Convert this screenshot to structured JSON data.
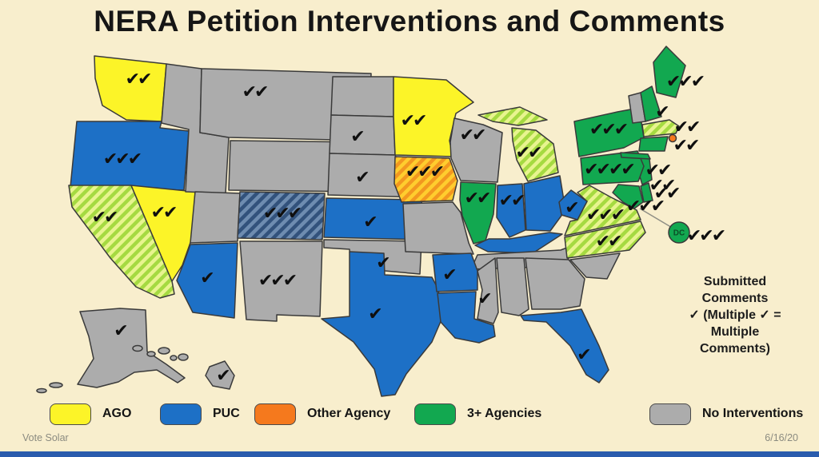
{
  "title": "NERA Petition Interventions and Comments",
  "annotation": "Submitted\nComments\n✓ (Multiple ✓ =\nMultiple\nComments)",
  "legend": {
    "items": [
      {
        "label": "AGO",
        "color": "#FCF428"
      },
      {
        "label": "PUC",
        "color": "#1D70C6"
      },
      {
        "label": "Other Agency",
        "color": "#F5791D"
      },
      {
        "label": "3+ Agencies",
        "color": "#12A850"
      },
      {
        "label": "No Interventions",
        "color": "#ACACAC"
      }
    ]
  },
  "footer": {
    "source": "Vote Solar",
    "date": "6/16/20"
  },
  "map_data": {
    "type": "choropleth",
    "region": "United States",
    "check_glyph": "✔",
    "dc_label": "DC",
    "checkmark_meaning": "Submitted Comments (multiple ✓ = multiple comments)",
    "categories": [
      "AGO",
      "PUC",
      "Other Agency",
      "3+ Agencies",
      "No Interventions"
    ],
    "states": [
      {
        "id": "WA",
        "name": "Washington",
        "category": "AGO",
        "hatched": false,
        "checks": 2
      },
      {
        "id": "OR",
        "name": "Oregon",
        "category": "PUC",
        "hatched": false,
        "checks": 3
      },
      {
        "id": "CA",
        "name": "California",
        "category": "3+ Agencies",
        "hatched": true,
        "checks": 2
      },
      {
        "id": "NV",
        "name": "Nevada",
        "category": "AGO",
        "hatched": false,
        "checks": 2
      },
      {
        "id": "ID",
        "name": "Idaho",
        "category": "No Interventions",
        "hatched": false,
        "checks": 0
      },
      {
        "id": "MT",
        "name": "Montana",
        "category": "No Interventions",
        "hatched": false,
        "checks": 2
      },
      {
        "id": "WY",
        "name": "Wyoming",
        "category": "No Interventions",
        "hatched": false,
        "checks": 0
      },
      {
        "id": "UT",
        "name": "Utah",
        "category": "No Interventions",
        "hatched": false,
        "checks": 0
      },
      {
        "id": "AZ",
        "name": "Arizona",
        "category": "PUC",
        "hatched": false,
        "checks": 1
      },
      {
        "id": "CO",
        "name": "Colorado",
        "category": "PUC",
        "hatched": true,
        "checks": 3
      },
      {
        "id": "NM",
        "name": "New Mexico",
        "category": "No Interventions",
        "hatched": false,
        "checks": 3
      },
      {
        "id": "ND",
        "name": "North Dakota",
        "category": "No Interventions",
        "hatched": false,
        "checks": 0
      },
      {
        "id": "SD",
        "name": "South Dakota",
        "category": "No Interventions",
        "hatched": false,
        "checks": 1
      },
      {
        "id": "NE",
        "name": "Nebraska",
        "category": "No Interventions",
        "hatched": false,
        "checks": 1
      },
      {
        "id": "KS",
        "name": "Kansas",
        "category": "PUC",
        "hatched": false,
        "checks": 1
      },
      {
        "id": "OK",
        "name": "Oklahoma",
        "category": "No Interventions",
        "hatched": false,
        "checks": 1
      },
      {
        "id": "TX",
        "name": "Texas",
        "category": "PUC",
        "hatched": false,
        "checks": 1
      },
      {
        "id": "MN",
        "name": "Minnesota",
        "category": "AGO",
        "hatched": false,
        "checks": 2
      },
      {
        "id": "IA",
        "name": "Iowa",
        "category": "Other Agency",
        "hatched": true,
        "checks": 3
      },
      {
        "id": "MO",
        "name": "Missouri",
        "category": "No Interventions",
        "hatched": false,
        "checks": 0
      },
      {
        "id": "WI",
        "name": "Wisconsin",
        "category": "No Interventions",
        "hatched": false,
        "checks": 2
      },
      {
        "id": "IL",
        "name": "Illinois",
        "category": "3+ Agencies",
        "hatched": false,
        "checks": 2
      },
      {
        "id": "MI",
        "name": "Michigan",
        "category": "3+ Agencies",
        "hatched": true,
        "checks": 2
      },
      {
        "id": "IN",
        "name": "Indiana",
        "category": "PUC",
        "hatched": false,
        "checks": 2
      },
      {
        "id": "OH",
        "name": "Ohio",
        "category": "PUC",
        "hatched": false,
        "checks": 0
      },
      {
        "id": "KY",
        "name": "Kentucky",
        "category": "PUC",
        "hatched": false,
        "checks": 0
      },
      {
        "id": "TN",
        "name": "Tennessee",
        "category": "No Interventions",
        "hatched": false,
        "checks": 0
      },
      {
        "id": "AR",
        "name": "Arkansas",
        "category": "PUC",
        "hatched": false,
        "checks": 1
      },
      {
        "id": "LA",
        "name": "Louisiana",
        "category": "PUC",
        "hatched": false,
        "checks": 0
      },
      {
        "id": "MS",
        "name": "Mississippi",
        "category": "No Interventions",
        "hatched": false,
        "checks": 1
      },
      {
        "id": "AL",
        "name": "Alabama",
        "category": "No Interventions",
        "hatched": false,
        "checks": 0
      },
      {
        "id": "GA",
        "name": "Georgia",
        "category": "No Interventions",
        "hatched": false,
        "checks": 0
      },
      {
        "id": "SC",
        "name": "South Carolina",
        "category": "No Interventions",
        "hatched": false,
        "checks": 0
      },
      {
        "id": "FL",
        "name": "Florida",
        "category": "PUC",
        "hatched": false,
        "checks": 1
      },
      {
        "id": "NC",
        "name": "North Carolina",
        "category": "3+ Agencies",
        "hatched": true,
        "checks": 2
      },
      {
        "id": "VA",
        "name": "Virginia",
        "category": "3+ Agencies",
        "hatched": true,
        "checks": 3
      },
      {
        "id": "WV",
        "name": "West Virginia",
        "category": "PUC",
        "hatched": false,
        "checks": 1
      },
      {
        "id": "MD",
        "name": "Maryland",
        "category": "3+ Agencies",
        "hatched": false,
        "checks": 3
      },
      {
        "id": "DE",
        "name": "Delaware",
        "category": "3+ Agencies",
        "hatched": false,
        "checks": 2
      },
      {
        "id": "NJ",
        "name": "New Jersey",
        "category": "3+ Agencies",
        "hatched": false,
        "checks": 2
      },
      {
        "id": "PA",
        "name": "Pennsylvania",
        "category": "3+ Agencies",
        "hatched": false,
        "checks": 4
      },
      {
        "id": "NY",
        "name": "New York",
        "category": "3+ Agencies",
        "hatched": false,
        "checks": 3
      },
      {
        "id": "CT",
        "name": "Connecticut",
        "category": "3+ Agencies",
        "hatched": false,
        "checks": 2
      },
      {
        "id": "RI",
        "name": "Rhode Island",
        "category": "Other Agency",
        "hatched": false,
        "checks": 2
      },
      {
        "id": "MA",
        "name": "Massachusetts",
        "category": "3+ Agencies",
        "hatched": true,
        "checks": 2
      },
      {
        "id": "VT",
        "name": "Vermont",
        "category": "No Interventions",
        "hatched": false,
        "checks": 0
      },
      {
        "id": "NH",
        "name": "New Hampshire",
        "category": "3+ Agencies",
        "hatched": false,
        "checks": 1
      },
      {
        "id": "ME",
        "name": "Maine",
        "category": "3+ Agencies",
        "hatched": false,
        "checks": 3
      },
      {
        "id": "DC",
        "name": "District of Columbia",
        "category": "3+ Agencies",
        "hatched": false,
        "checks": 3
      },
      {
        "id": "AK",
        "name": "Alaska",
        "category": "No Interventions",
        "hatched": false,
        "checks": 1
      },
      {
        "id": "HI",
        "name": "Hawaii",
        "category": "No Interventions",
        "hatched": false,
        "checks": 1
      }
    ]
  }
}
